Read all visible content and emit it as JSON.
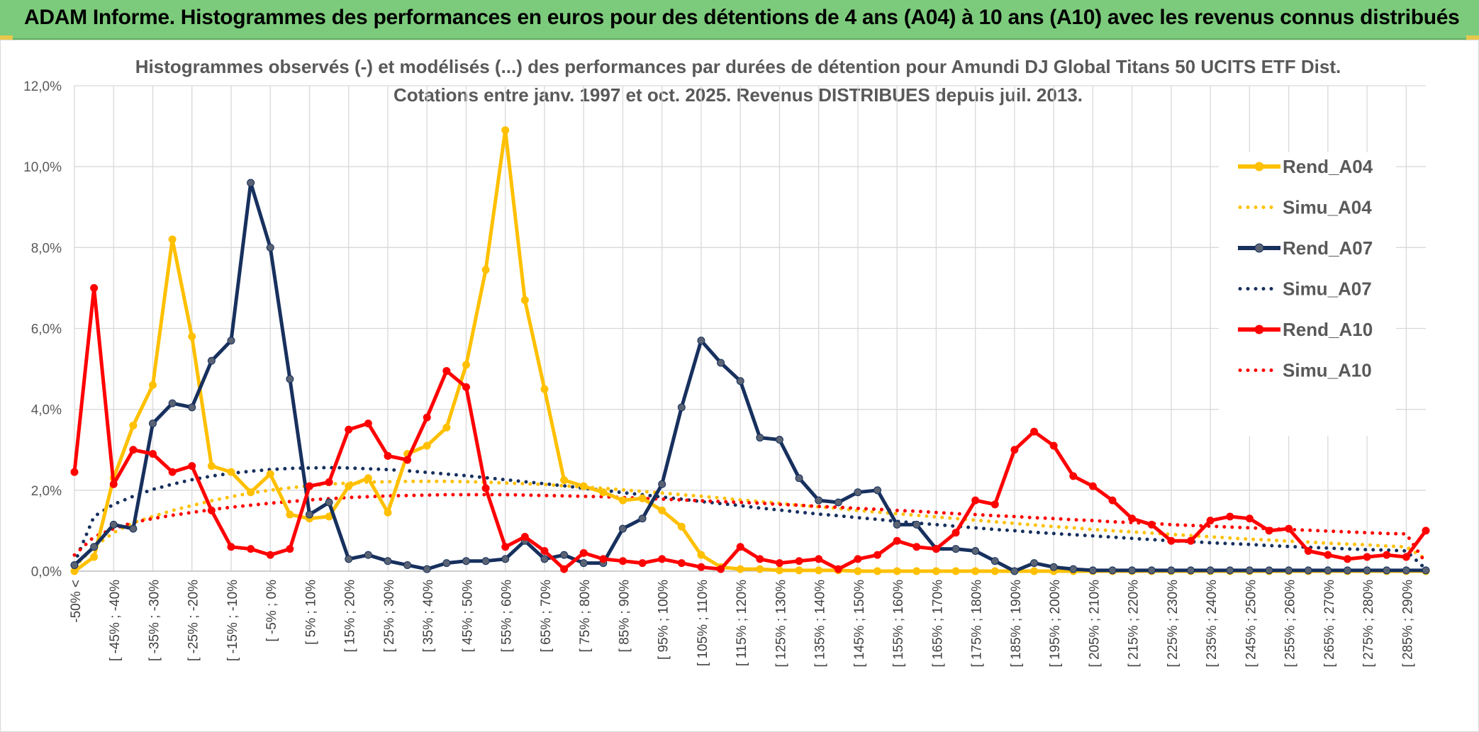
{
  "header": {
    "title": "ADAM Informe. Histogrammes des performances en euros pour des détentions de 4 ans (A04) à 10 ans (A10) avec les revenus connus distribués"
  },
  "chart_data": {
    "type": "line",
    "title": "Histogrammes observés (-) et modélisés (...) des performances par durées de détention pour Amundi DJ Global Titans 50 UCITS ETF Dist.",
    "subtitle": "Cotations entre janv. 1997 et oct. 2025. Revenus DISTRIBUES depuis juil. 2013.",
    "ylim": [
      0,
      12
    ],
    "yticks": [
      0,
      2,
      4,
      6,
      8,
      10,
      12
    ],
    "ytick_labels": [
      "0,0%",
      "2,0%",
      "4,0%",
      "6,0%",
      "8,0%",
      "10,0%",
      "12,0%"
    ],
    "grid": true,
    "legend_position": "right",
    "x_labels": [
      "-50% <",
      "[ -45% ; -40%",
      "[ -35% ; -30%",
      "[ -25% ; -20%",
      "[ -15% ; -10%",
      "[ -5% ; 0%",
      "[ 5% ; 10%",
      "[ 15% ; 20%",
      "[ 25% ; 30%",
      "[ 35% ; 40%",
      "[ 45% ; 50%",
      "[ 55% ; 60%",
      "[ 65% ; 70%",
      "[ 75% ; 80%",
      "[ 85% ; 90%",
      "[ 95% ; 100%",
      "[ 105% ; 110%",
      "[ 115% ; 120%",
      "[ 125% ; 130%",
      "[ 135% ; 140%",
      "[ 145% ; 150%",
      "[ 155% ; 160%",
      "[ 165% ; 170%",
      "[ 175% ; 180%",
      "[ 185% ; 190%",
      "[ 195% ; 200%",
      "[ 205% ; 210%",
      "[ 215% ; 220%",
      "[ 225% ; 230%",
      "[ 235% ; 240%",
      "[ 245% ; 250%",
      "[ 255% ; 260%",
      "[ 265% ; 270%",
      "[ 275% ; 280%",
      "[ 285% ; 290%"
    ],
    "series": [
      {
        "name": "Rend_A04",
        "color": "#ffc000",
        "style": "solid",
        "values": [
          0.0,
          0.35,
          2.3,
          3.6,
          4.6,
          8.2,
          5.8,
          2.6,
          2.45,
          1.95,
          2.4,
          1.4,
          1.3,
          1.35,
          2.1,
          2.3,
          1.45,
          2.9,
          3.1,
          3.55,
          5.1,
          7.45,
          10.9,
          6.7,
          4.5,
          2.25,
          2.1,
          1.95,
          1.75,
          1.8,
          1.5,
          1.1,
          0.4,
          0.1,
          0.05,
          0.05,
          0.02,
          0.02,
          0.02,
          0.02,
          0.0,
          0.0,
          0.0,
          0.0,
          0.0,
          0.0,
          0.0,
          0.0,
          0.0,
          0.0,
          0.0,
          0.0,
          0.0,
          0.0,
          0.0,
          0.0,
          0.0,
          0.0,
          0.0,
          0.0,
          0.0,
          0.0,
          0.0,
          0.0,
          0.0,
          0.0,
          0.0,
          0.0,
          0.0,
          0.0
        ]
      },
      {
        "name": "Simu_A04",
        "color": "#ffc000",
        "style": "dotted",
        "values": [
          0.1,
          0.6,
          0.95,
          1.2,
          1.35,
          1.5,
          1.62,
          1.74,
          1.84,
          1.93,
          2.0,
          2.06,
          2.11,
          2.15,
          2.18,
          2.2,
          2.21,
          2.22,
          2.22,
          2.22,
          2.21,
          2.2,
          2.18,
          2.16,
          2.14,
          2.11,
          2.08,
          2.05,
          2.01,
          1.97,
          1.93,
          1.89,
          1.85,
          1.81,
          1.76,
          1.72,
          1.68,
          1.63,
          1.59,
          1.55,
          1.5,
          1.46,
          1.42,
          1.38,
          1.34,
          1.3,
          1.26,
          1.22,
          1.18,
          1.14,
          1.1,
          1.07,
          1.03,
          1.0,
          0.97,
          0.94,
          0.91,
          0.88,
          0.85,
          0.82,
          0.79,
          0.77,
          0.74,
          0.72,
          0.69,
          0.67,
          0.65,
          0.62,
          0.6,
          0.3
        ]
      },
      {
        "name": "Rend_A07",
        "color": "#17305e",
        "style": "solid",
        "values": [
          0.15,
          0.6,
          1.15,
          1.05,
          3.65,
          4.15,
          4.05,
          5.2,
          5.7,
          9.6,
          8.0,
          4.75,
          1.4,
          1.7,
          0.3,
          0.4,
          0.25,
          0.15,
          0.05,
          0.2,
          0.25,
          0.25,
          0.3,
          0.75,
          0.3,
          0.4,
          0.2,
          0.2,
          1.05,
          1.3,
          2.15,
          4.05,
          5.7,
          5.15,
          4.7,
          3.3,
          3.25,
          2.3,
          1.75,
          1.7,
          1.95,
          2.0,
          1.15,
          1.15,
          0.55,
          0.55,
          0.5,
          0.25,
          0.0,
          0.2,
          0.1,
          0.05,
          0.02,
          0.02,
          0.02,
          0.02,
          0.02,
          0.02,
          0.02,
          0.02,
          0.02,
          0.02,
          0.02,
          0.02,
          0.02,
          0.02,
          0.02,
          0.02,
          0.02,
          0.02
        ]
      },
      {
        "name": "Simu_A07",
        "color": "#17305e",
        "style": "dotted",
        "values": [
          0.2,
          1.35,
          1.65,
          1.85,
          2.02,
          2.15,
          2.26,
          2.35,
          2.42,
          2.47,
          2.51,
          2.54,
          2.55,
          2.56,
          2.55,
          2.53,
          2.51,
          2.48,
          2.44,
          2.4,
          2.36,
          2.31,
          2.26,
          2.21,
          2.16,
          2.11,
          2.05,
          2.0,
          1.94,
          1.89,
          1.83,
          1.78,
          1.72,
          1.67,
          1.62,
          1.56,
          1.51,
          1.46,
          1.41,
          1.37,
          1.32,
          1.28,
          1.23,
          1.19,
          1.15,
          1.11,
          1.07,
          1.03,
          1.0,
          0.96,
          0.93,
          0.9,
          0.87,
          0.84,
          0.81,
          0.78,
          0.75,
          0.73,
          0.7,
          0.68,
          0.66,
          0.63,
          0.61,
          0.59,
          0.57,
          0.55,
          0.53,
          0.52,
          0.5,
          0.05
        ]
      },
      {
        "name": "Rend_A10",
        "color": "#ff0000",
        "style": "solid",
        "values": [
          2.45,
          7.0,
          2.15,
          3.0,
          2.9,
          2.45,
          2.6,
          1.5,
          0.6,
          0.55,
          0.4,
          0.55,
          2.1,
          2.2,
          3.5,
          3.65,
          2.85,
          2.75,
          3.8,
          4.95,
          4.55,
          2.05,
          0.6,
          0.85,
          0.5,
          0.05,
          0.45,
          0.3,
          0.25,
          0.2,
          0.3,
          0.2,
          0.1,
          0.05,
          0.6,
          0.3,
          0.2,
          0.25,
          0.3,
          0.05,
          0.3,
          0.4,
          0.75,
          0.6,
          0.55,
          0.95,
          1.75,
          1.65,
          3.0,
          3.45,
          3.1,
          2.35,
          2.1,
          1.75,
          1.3,
          1.15,
          0.75,
          0.75,
          1.25,
          1.35,
          1.3,
          1.0,
          1.05,
          0.5,
          0.4,
          0.3,
          0.35,
          0.4,
          0.35,
          1.0
        ]
      },
      {
        "name": "Simu_A10",
        "color": "#ff0000",
        "style": "dotted",
        "values": [
          0.4,
          0.85,
          1.05,
          1.2,
          1.3,
          1.38,
          1.45,
          1.52,
          1.58,
          1.63,
          1.68,
          1.72,
          1.76,
          1.79,
          1.82,
          1.84,
          1.86,
          1.87,
          1.88,
          1.89,
          1.89,
          1.89,
          1.89,
          1.88,
          1.87,
          1.86,
          1.85,
          1.84,
          1.82,
          1.8,
          1.78,
          1.76,
          1.74,
          1.72,
          1.7,
          1.68,
          1.65,
          1.63,
          1.6,
          1.58,
          1.55,
          1.53,
          1.5,
          1.48,
          1.45,
          1.42,
          1.4,
          1.37,
          1.35,
          1.32,
          1.3,
          1.27,
          1.25,
          1.22,
          1.2,
          1.18,
          1.15,
          1.13,
          1.11,
          1.09,
          1.07,
          1.05,
          1.03,
          1.01,
          0.99,
          0.97,
          0.95,
          0.93,
          0.92,
          0.2
        ]
      }
    ]
  }
}
